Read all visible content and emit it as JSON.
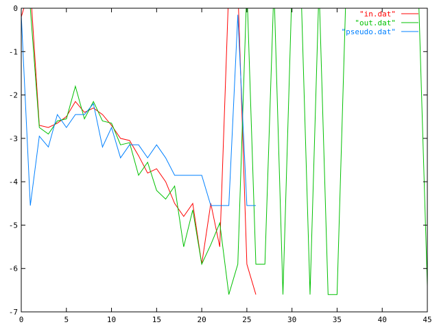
{
  "chart_data": {
    "type": "line",
    "title": "",
    "xlabel": "",
    "ylabel": "",
    "xlim": [
      0,
      45
    ],
    "ylim": [
      -7,
      0
    ],
    "grid": false,
    "legend_position": "top-right",
    "x_ticks": [
      0,
      5,
      10,
      15,
      20,
      25,
      30,
      35,
      40,
      45
    ],
    "y_ticks": [
      0,
      -1,
      -2,
      -3,
      -4,
      -5,
      -6,
      -7
    ],
    "x_tick_labels": [
      "0",
      "5",
      "10",
      "15",
      "20",
      "25",
      "30",
      "35",
      "40",
      "45"
    ],
    "y_tick_labels": [
      "0",
      "-1",
      "-2",
      "-3",
      "-4",
      "-5",
      "-6",
      "-7"
    ],
    "series": [
      {
        "name": "\"in.dat\"",
        "color": "#ff0000",
        "x": [
          0,
          1,
          2,
          3,
          4,
          5,
          6,
          7,
          8,
          9,
          10,
          11,
          12,
          13,
          14,
          15,
          16,
          17,
          18,
          19,
          20,
          21,
          22,
          23,
          24,
          25,
          26
        ],
        "y": [
          -0.2,
          0.5,
          -2.7,
          -2.75,
          -2.65,
          -2.5,
          -2.15,
          -2.4,
          -2.3,
          -2.45,
          -2.7,
          -3.0,
          -3.05,
          -3.4,
          -3.8,
          -3.7,
          -4.0,
          -4.5,
          -4.8,
          -4.5,
          -5.9,
          -4.5,
          -5.5,
          0.5,
          0.5,
          -5.9,
          -6.6
        ]
      },
      {
        "name": "\"out.dat\"",
        "color": "#00c000",
        "x": [
          0,
          1,
          2,
          3,
          4,
          5,
          6,
          7,
          8,
          9,
          10,
          11,
          12,
          13,
          14,
          15,
          16,
          17,
          18,
          19,
          20,
          21,
          22,
          23,
          24,
          25,
          26,
          27,
          28,
          29,
          30,
          31,
          32,
          33,
          34,
          35,
          36,
          37,
          38,
          39,
          40,
          41,
          42,
          43,
          44,
          45
        ],
        "y": [
          0.5,
          0.0,
          -2.75,
          -2.9,
          -2.6,
          -2.55,
          -1.8,
          -2.55,
          -2.15,
          -2.6,
          -2.65,
          -3.15,
          -3.1,
          -3.85,
          -3.55,
          -4.2,
          -4.4,
          -4.1,
          -5.5,
          -4.65,
          -5.9,
          -5.45,
          -4.95,
          -6.6,
          -5.9,
          0.5,
          -5.9,
          -5.9,
          0.5,
          -6.6,
          0.5,
          0.5,
          -6.6,
          0.5,
          -6.6,
          -6.6,
          0.5,
          0.5,
          0.5,
          0.5,
          0.5,
          0.5,
          0.5,
          0.5,
          0.5,
          -6.4
        ]
      },
      {
        "name": "\"pseudo.dat\"",
        "color": "#0080ff",
        "x": [
          0,
          1,
          2,
          3,
          4,
          5,
          6,
          7,
          8,
          9,
          10,
          11,
          12,
          13,
          14,
          15,
          16,
          17,
          18,
          19,
          20,
          21,
          22,
          23,
          24,
          25,
          26
        ],
        "y": [
          -0.15,
          -4.55,
          -2.95,
          -3.2,
          -2.45,
          -2.75,
          -2.45,
          -2.45,
          -2.2,
          -3.2,
          -2.75,
          -3.45,
          -3.15,
          -3.15,
          -3.45,
          -3.15,
          -3.45,
          -3.85,
          -3.85,
          -3.85,
          -3.85,
          -4.55,
          -4.55,
          -4.55,
          -0.15,
          -4.55,
          -4.55
        ]
      }
    ]
  }
}
